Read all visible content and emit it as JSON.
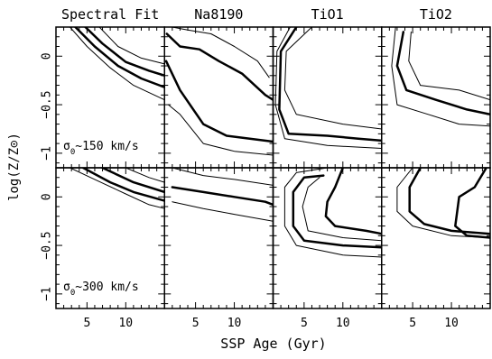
{
  "chart_data": {
    "type": "line",
    "subtype": "contour-grid",
    "xlabel": "SSP Age (Gyr)",
    "ylabel": "log(Z/Z⊙)",
    "xlim": [
      1,
      15
    ],
    "ylim": [
      -1.15,
      0.3
    ],
    "x_ticks": [
      5,
      10
    ],
    "y_ticks": [
      0,
      -0.5,
      -1
    ],
    "y_tick_labels": [
      "0",
      "−0.5",
      "−1"
    ],
    "columns": [
      "Spectral Fit",
      "Na8190",
      "TiO1",
      "TiO2"
    ],
    "rows": [
      {
        "label_prefix": "σ",
        "label_sub": "0",
        "label_suffix": "~150 km/s"
      },
      {
        "label_prefix": "σ",
        "label_sub": "0",
        "label_suffix": "~300 km/s"
      }
    ],
    "panels": [
      {
        "row": 0,
        "col": 0,
        "contours": [
          {
            "level": "outer",
            "width": 1,
            "points": [
              [
                2.8,
                0.3
              ],
              [
                5,
                0.1
              ],
              [
                8,
                -0.12
              ],
              [
                11,
                -0.3
              ],
              [
                15,
                -0.45
              ]
            ]
          },
          {
            "level": "middle",
            "width": 2.5,
            "points": [
              [
                3.5,
                0.3
              ],
              [
                6,
                0.1
              ],
              [
                9,
                -0.1
              ],
              [
                12,
                -0.23
              ],
              [
                15,
                -0.32
              ]
            ]
          },
          {
            "level": "middle",
            "width": 2.5,
            "points": [
              [
                4.8,
                0.3
              ],
              [
                7,
                0.13
              ],
              [
                10,
                -0.06
              ],
              [
                13,
                -0.15
              ],
              [
                15,
                -0.2
              ]
            ]
          },
          {
            "level": "outer",
            "width": 1,
            "points": [
              [
                6.6,
                0.3
              ],
              [
                9,
                0.1
              ],
              [
                12,
                -0.02
              ],
              [
                15,
                -0.08
              ]
            ]
          }
        ]
      },
      {
        "row": 0,
        "col": 1,
        "contours": [
          {
            "level": "outer",
            "width": 1,
            "points": [
              [
                2,
                0.3
              ],
              [
                4,
                0.27
              ],
              [
                7,
                0.23
              ],
              [
                10,
                0.1
              ],
              [
                13,
                -0.05
              ],
              [
                14.5,
                -0.22
              ]
            ]
          },
          {
            "level": "middle",
            "width": 2.5,
            "points": [
              [
                1.3,
                0.23
              ],
              [
                3,
                0.1
              ],
              [
                5.5,
                0.07
              ],
              [
                8,
                -0.05
              ],
              [
                11,
                -0.18
              ],
              [
                14,
                -0.4
              ],
              [
                15,
                -0.45
              ]
            ]
          },
          {
            "level": "middle",
            "width": 2.5,
            "points": [
              [
                1.2,
                -0.05
              ],
              [
                3,
                -0.35
              ],
              [
                6,
                -0.7
              ],
              [
                9,
                -0.82
              ],
              [
                12,
                -0.85
              ],
              [
                15,
                -0.88
              ]
            ]
          },
          {
            "level": "outer",
            "width": 1,
            "points": [
              [
                1.5,
                -0.5
              ],
              [
                3,
                -0.6
              ],
              [
                6,
                -0.9
              ],
              [
                10,
                -0.98
              ],
              [
                15,
                -1.02
              ]
            ]
          }
        ]
      },
      {
        "row": 0,
        "col": 2,
        "contours": [
          {
            "level": "middle",
            "width": 2.5,
            "points": [
              [
                4,
                0.3
              ],
              [
                2,
                0.05
              ],
              [
                1.8,
                -0.55
              ],
              [
                3,
                -0.8
              ],
              [
                8,
                -0.82
              ],
              [
                12,
                -0.85
              ],
              [
                15,
                -0.87
              ]
            ]
          },
          {
            "level": "outer",
            "width": 1,
            "points": [
              [
                3.2,
                0.3
              ],
              [
                1.5,
                0.05
              ],
              [
                1.3,
                -0.5
              ],
              [
                2.5,
                -0.85
              ],
              [
                8,
                -0.92
              ],
              [
                15,
                -0.95
              ]
            ]
          },
          {
            "level": "outer",
            "width": 1,
            "points": [
              [
                6,
                0.3
              ],
              [
                2.7,
                0.05
              ],
              [
                2.5,
                -0.35
              ],
              [
                4,
                -0.6
              ],
              [
                10,
                -0.7
              ],
              [
                15,
                -0.75
              ]
            ]
          }
        ]
      },
      {
        "row": 0,
        "col": 3,
        "contours": [
          {
            "level": "middle",
            "width": 2.5,
            "points": [
              [
                3.8,
                0.25
              ],
              [
                3,
                -0.1
              ],
              [
                4.2,
                -0.35
              ],
              [
                8,
                -0.45
              ],
              [
                12,
                -0.55
              ],
              [
                15,
                -0.6
              ]
            ]
          },
          {
            "level": "outer",
            "width": 1,
            "points": [
              [
                2.8,
                0.3
              ],
              [
                2.3,
                -0.1
              ],
              [
                3,
                -0.5
              ],
              [
                7,
                -0.6
              ],
              [
                11,
                -0.7
              ],
              [
                15,
                -0.72
              ]
            ]
          },
          {
            "level": "outer",
            "width": 1,
            "points": [
              [
                4.8,
                0.25
              ],
              [
                4.5,
                -0.05
              ],
              [
                6,
                -0.3
              ],
              [
                11,
                -0.35
              ],
              [
                15,
                -0.45
              ]
            ]
          }
        ]
      },
      {
        "row": 1,
        "col": 0,
        "contours": [
          {
            "level": "outer",
            "width": 1,
            "points": [
              [
                2.8,
                0.3
              ],
              [
                6,
                0.18
              ],
              [
                10,
                0.03
              ],
              [
                13,
                -0.08
              ],
              [
                15,
                -0.12
              ]
            ]
          },
          {
            "level": "middle",
            "width": 2.5,
            "points": [
              [
                4.5,
                0.3
              ],
              [
                8,
                0.15
              ],
              [
                11,
                0.05
              ],
              [
                15,
                -0.04
              ]
            ]
          },
          {
            "level": "middle",
            "width": 2.5,
            "points": [
              [
                7,
                0.3
              ],
              [
                11,
                0.15
              ],
              [
                15,
                0.05
              ]
            ]
          },
          {
            "level": "outer",
            "width": 1,
            "points": [
              [
                10,
                0.3
              ],
              [
                13,
                0.2
              ],
              [
                15,
                0.15
              ]
            ]
          }
        ]
      },
      {
        "row": 1,
        "col": 1,
        "contours": [
          {
            "level": "outer",
            "width": 1,
            "points": [
              [
                2,
                0.3
              ],
              [
                6,
                0.22
              ],
              [
                10,
                0.18
              ],
              [
                15,
                0.12
              ]
            ]
          },
          {
            "level": "middle",
            "width": 2.5,
            "points": [
              [
                2,
                0.1
              ],
              [
                6,
                0.05
              ],
              [
                10,
                0.0
              ],
              [
                14,
                -0.05
              ],
              [
                15,
                -0.08
              ]
            ]
          },
          {
            "level": "outer",
            "width": 1,
            "points": [
              [
                2,
                -0.05
              ],
              [
                6,
                -0.12
              ],
              [
                10,
                -0.18
              ],
              [
                15,
                -0.25
              ]
            ]
          }
        ]
      },
      {
        "row": 1,
        "col": 2,
        "contours": [
          {
            "level": "outer",
            "width": 1,
            "points": [
              [
                8,
                0.3
              ],
              [
                4,
                0.25
              ],
              [
                2.5,
                0.1
              ],
              [
                2.5,
                -0.3
              ],
              [
                4,
                -0.5
              ],
              [
                10,
                -0.6
              ],
              [
                15,
                -0.62
              ]
            ]
          },
          {
            "level": "middle",
            "width": 2.5,
            "points": [
              [
                7.5,
                0.22
              ],
              [
                5,
                0.2
              ],
              [
                3.6,
                0.05
              ],
              [
                3.6,
                -0.3
              ],
              [
                5,
                -0.45
              ],
              [
                10,
                -0.5
              ],
              [
                15,
                -0.52
              ]
            ]
          },
          {
            "level": "middle",
            "width": 2.5,
            "points": [
              [
                10,
                0.3
              ],
              [
                9,
                0.1
              ],
              [
                8,
                -0.05
              ],
              [
                7.8,
                -0.2
              ],
              [
                9,
                -0.3
              ],
              [
                13,
                -0.35
              ],
              [
                15,
                -0.38
              ]
            ]
          },
          {
            "level": "outer",
            "width": 1,
            "points": [
              [
                7,
                0.2
              ],
              [
                5.5,
                0.1
              ],
              [
                4.8,
                -0.1
              ],
              [
                5.5,
                -0.35
              ],
              [
                10,
                -0.42
              ],
              [
                15,
                -0.45
              ]
            ]
          }
        ]
      },
      {
        "row": 1,
        "col": 3,
        "contours": [
          {
            "level": "outer",
            "width": 1,
            "points": [
              [
                5,
                0.3
              ],
              [
                3,
                0.1
              ],
              [
                3,
                -0.15
              ],
              [
                5,
                -0.3
              ],
              [
                10,
                -0.4
              ],
              [
                15,
                -0.42
              ]
            ]
          },
          {
            "level": "middle",
            "width": 2.5,
            "points": [
              [
                14.5,
                0.3
              ],
              [
                13,
                0.1
              ],
              [
                11,
                0.0
              ],
              [
                10.5,
                -0.3
              ],
              [
                12,
                -0.4
              ],
              [
                15,
                -0.42
              ]
            ]
          },
          {
            "level": "middle",
            "width": 2.5,
            "points": [
              [
                6,
                0.3
              ],
              [
                4.6,
                0.1
              ],
              [
                4.6,
                -0.15
              ],
              [
                6.5,
                -0.28
              ],
              [
                10,
                -0.35
              ],
              [
                15,
                -0.38
              ]
            ]
          }
        ]
      }
    ]
  }
}
